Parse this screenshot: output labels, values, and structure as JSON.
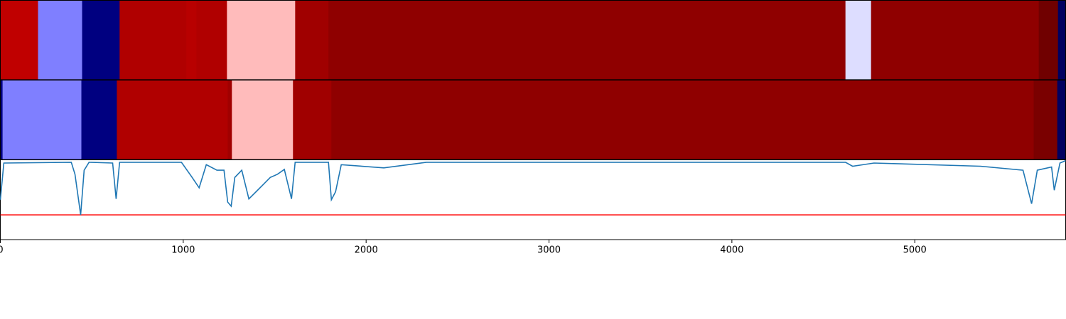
{
  "chart_data": {
    "type": "heatmap-line",
    "xlim": [
      0,
      5825
    ],
    "xticks": [
      0,
      1000,
      2000,
      3000,
      4000,
      5000
    ],
    "strips": [
      {
        "edges": [
          0,
          206,
          447,
          652,
          1017,
          1072,
          1239,
          1612,
          1794,
          4621,
          4761,
          5678,
          5783,
          5825
        ],
        "colors": [
          "#c00000",
          "#7f7fff",
          "#000080",
          "#b00000",
          "#b80000",
          "#b00000",
          "#ffbbbb",
          "#a00000",
          "#8f0000",
          "#ddddff",
          "#8f0000",
          "#700000",
          "#000060"
        ]
      },
      {
        "edges": [
          0,
          12,
          443,
          637,
          1243,
          1266,
          1600,
          1810,
          5650,
          5779,
          5825
        ],
        "colors": [
          "#000080",
          "#7f7fff",
          "#000080",
          "#b00000",
          "#a00000",
          "#ffbbbb",
          "#a00000",
          "#8f0000",
          "#7a0000",
          "#000060"
        ]
      }
    ],
    "ylim": [
      0,
      1
    ],
    "line": {
      "color": "#1f77b4",
      "x": [
        0,
        19,
        388,
        408,
        439,
        458,
        485,
        614,
        633,
        652,
        990,
        1049,
        1087,
        1126,
        1184,
        1223,
        1243,
        1262,
        1282,
        1320,
        1359,
        1398,
        1437,
        1476,
        1515,
        1553,
        1592,
        1612,
        1794,
        1810,
        1833,
        1864,
        2097,
        2330,
        4621,
        4660,
        4777,
        5359,
        5592,
        5639,
        5670,
        5748,
        5763,
        5794,
        5825
      ],
      "values": [
        0.5,
        0.96,
        0.97,
        0.82,
        0.31,
        0.87,
        0.97,
        0.96,
        0.51,
        0.97,
        0.97,
        0.78,
        0.65,
        0.94,
        0.87,
        0.87,
        0.47,
        0.42,
        0.78,
        0.87,
        0.51,
        0.6,
        0.69,
        0.78,
        0.82,
        0.88,
        0.51,
        0.97,
        0.97,
        0.5,
        0.6,
        0.94,
        0.9,
        0.97,
        0.97,
        0.92,
        0.96,
        0.92,
        0.87,
        0.45,
        0.87,
        0.91,
        0.62,
        0.96,
        0.99
      ]
    },
    "threshold": {
      "value": 0.31,
      "color": "#ff0000"
    }
  }
}
